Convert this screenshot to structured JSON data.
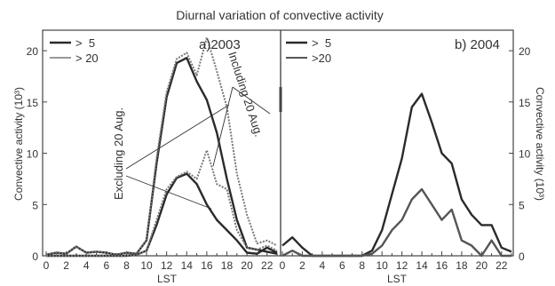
{
  "figure": {
    "title": "Diurnal variation of convective activity"
  },
  "chart_data": [
    {
      "type": "line",
      "panel_label": "a)2003",
      "xlabel": "LST",
      "ylabel": "Convective activity (10³)",
      "xlim": [
        0,
        23
      ],
      "ylim": [
        0,
        22
      ],
      "xticks": [
        0,
        2,
        4,
        6,
        8,
        10,
        12,
        14,
        16,
        18,
        20,
        22
      ],
      "yticks": [
        0,
        5,
        10,
        15,
        20
      ],
      "legend": [
        {
          "label": ">  5",
          "style": "dark-thick"
        },
        {
          "label": "> 20",
          "style": "gray-thin"
        }
      ],
      "legend_position": "top-left",
      "x": [
        0,
        1,
        2,
        3,
        4,
        5,
        6,
        7,
        8,
        9,
        10,
        11,
        12,
        13,
        14,
        15,
        16,
        17,
        18,
        19,
        20,
        21,
        22,
        23
      ],
      "series": [
        {
          "values": [
            0.1,
            0.3,
            0.2,
            0.9,
            0.3,
            0.4,
            0.3,
            0.1,
            0.3,
            0.2,
            1.5,
            9.0,
            15.5,
            18.8,
            19.3,
            17.0,
            15.2,
            12.0,
            7.5,
            3.5,
            0.8,
            0.6,
            0.4,
            0.2
          ],
          "color": "#2a2a2a",
          "dash": false
        },
        {
          "values": [
            0.1,
            0.3,
            0.2,
            0.9,
            0.3,
            0.4,
            0.3,
            0.1,
            0.3,
            0.2,
            1.5,
            9.5,
            16.0,
            19.2,
            19.8,
            17.6,
            21.3,
            18.0,
            14.5,
            8.0,
            4.0,
            1.2,
            1.5,
            1.0
          ],
          "color": "#777777",
          "dash": true
        },
        {
          "values": [
            0.0,
            0.0,
            0.0,
            0.0,
            0.0,
            0.0,
            0.0,
            0.0,
            0.0,
            0.1,
            0.5,
            3.0,
            6.0,
            7.6,
            8.0,
            7.0,
            5.0,
            3.5,
            2.5,
            1.5,
            0.3,
            0.2,
            0.8,
            0.3
          ],
          "color": "#2a2a2a",
          "dash": false
        },
        {
          "values": [
            0.0,
            0.0,
            0.0,
            0.0,
            0.0,
            0.0,
            0.0,
            0.0,
            0.0,
            0.1,
            0.5,
            3.5,
            6.5,
            7.7,
            8.2,
            7.5,
            10.3,
            7.0,
            6.5,
            2.5,
            0.8,
            0.6,
            1.0,
            0.5
          ],
          "color": "#777777",
          "dash": true
        }
      ],
      "annotations": [
        "Excluding 20 Aug.",
        "Including 20 Aug."
      ]
    },
    {
      "type": "line",
      "panel_label": "b) 2004",
      "xlabel": "LST",
      "ylabel": "Convective activity (10³)",
      "xlim": [
        0,
        23
      ],
      "ylim": [
        0,
        22
      ],
      "xticks": [
        0,
        2,
        4,
        6,
        8,
        10,
        12,
        14,
        16,
        18,
        20,
        22
      ],
      "yticks": [
        0,
        5,
        10,
        15,
        20
      ],
      "legend": [
        {
          "label": ">  5",
          "style": "dark-thick"
        },
        {
          "label": ">20",
          "style": "gray-thin"
        }
      ],
      "legend_position": "top-left",
      "x": [
        0,
        1,
        2,
        3,
        4,
        5,
        6,
        7,
        8,
        9,
        10,
        11,
        12,
        13,
        14,
        15,
        16,
        17,
        18,
        19,
        20,
        21,
        22,
        23
      ],
      "series": [
        {
          "values": [
            1.0,
            1.8,
            0.8,
            0.0,
            0.0,
            0.0,
            0.0,
            0.0,
            0.0,
            0.5,
            2.5,
            6.0,
            9.5,
            14.5,
            15.8,
            13.0,
            10.0,
            9.0,
            5.5,
            4.0,
            3.0,
            3.0,
            0.8,
            0.4
          ],
          "color": "#2a2a2a",
          "dash": false
        },
        {
          "values": [
            0.0,
            0.5,
            0.0,
            0.0,
            0.0,
            0.0,
            0.0,
            0.0,
            0.0,
            0.2,
            1.0,
            2.5,
            3.5,
            5.5,
            6.5,
            5.0,
            3.5,
            4.5,
            1.5,
            1.0,
            0.0,
            1.5,
            0.0,
            0.0
          ],
          "color": "#555555",
          "dash": false
        }
      ]
    }
  ]
}
